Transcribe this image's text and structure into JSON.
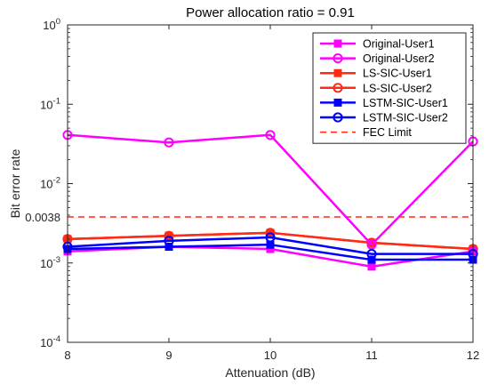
{
  "chart_data": {
    "type": "line",
    "title": "Power allocation ratio = 0.91",
    "xlabel": "Attenuation (dB)",
    "ylabel": "Bit error rate",
    "x": [
      8,
      9,
      10,
      11,
      12
    ],
    "xlim": [
      8,
      12
    ],
    "x_ticks": [
      "8",
      "9",
      "10",
      "11",
      "12"
    ],
    "ylim": [
      0.0001,
      1
    ],
    "yscale": "log",
    "y_tick_values": [
      0.0001,
      0.001,
      0.01,
      0.1,
      1
    ],
    "y_tick_labels": [
      {
        "base": "10",
        "exp": "-4"
      },
      {
        "base": "10",
        "exp": "-3"
      },
      {
        "base": "10",
        "exp": "-2"
      },
      {
        "base": "10",
        "exp": "-1"
      },
      {
        "base": "10",
        "exp": "0"
      }
    ],
    "extra_y_tick": {
      "value": 0.0038,
      "label": "0.0038"
    },
    "grid": false,
    "legend_position": "top-right",
    "series": [
      {
        "name": "Original-User1",
        "color": "#ff00ff",
        "marker": "square",
        "style": "solid",
        "values": [
          0.0014,
          0.0016,
          0.0015,
          0.0009,
          0.0014
        ]
      },
      {
        "name": "Original-User2",
        "color": "#ff00ff",
        "marker": "circle",
        "style": "solid",
        "values": [
          0.041,
          0.033,
          0.041,
          0.0017,
          0.034
        ]
      },
      {
        "name": "LS-SIC-User1",
        "color": "#ff2b14",
        "marker": "square",
        "style": "solid",
        "values": [
          0.002,
          0.0022,
          0.0024,
          0.0018,
          0.0015
        ]
      },
      {
        "name": "LS-SIC-User2",
        "color": "#ff2b14",
        "marker": "circle",
        "style": "solid",
        "values": [
          0.002,
          0.0022,
          0.0024,
          0.0018,
          0.0015
        ]
      },
      {
        "name": "LSTM-SIC-User1",
        "color": "#0000ff",
        "marker": "square",
        "style": "solid",
        "values": [
          0.0015,
          0.0016,
          0.0017,
          0.0011,
          0.0011
        ]
      },
      {
        "name": "LSTM-SIC-User2",
        "color": "#0000ff",
        "marker": "circle",
        "style": "solid",
        "values": [
          0.0016,
          0.0019,
          0.0021,
          0.0013,
          0.0013
        ]
      },
      {
        "name": "FEC Limit",
        "color": "#ff2b14",
        "marker": "none",
        "style": "dashed",
        "values": [
          0.0038,
          0.0038,
          0.0038,
          0.0038,
          0.0038
        ]
      }
    ]
  }
}
